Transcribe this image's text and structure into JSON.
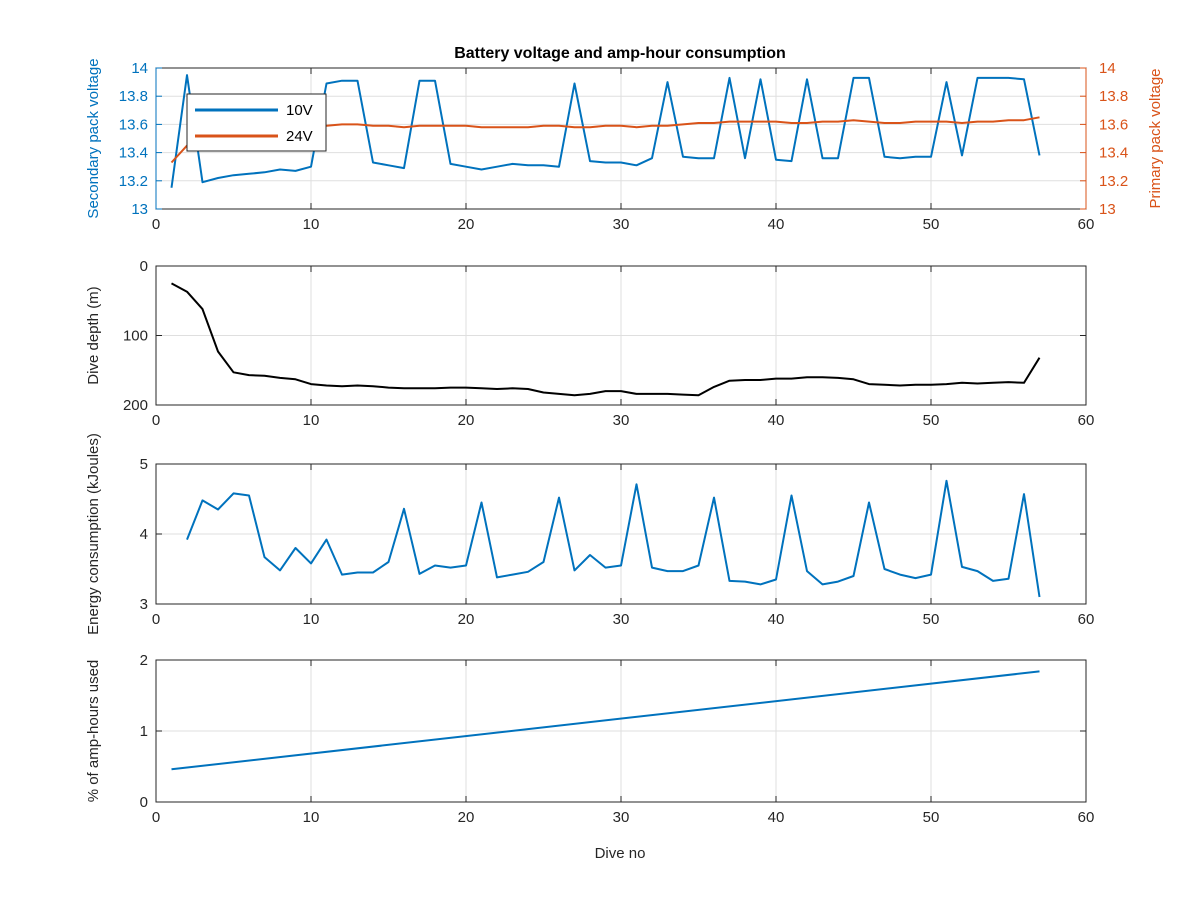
{
  "figure": {
    "title": "Battery voltage and amp-hour consumption",
    "xlabel": "Dive no",
    "colors": {
      "blue": "#0072BD",
      "orange": "#D95319",
      "black": "#000000",
      "axis": "#262626",
      "grid": "#dfdfdf"
    }
  },
  "chart_data": [
    {
      "type": "line",
      "title": "Battery voltage and amp-hour consumption",
      "xlabel": "",
      "ylabel_left": "Secondary pack voltage",
      "ylabel_right": "Primary pack voltage",
      "xlim": [
        0,
        60
      ],
      "xticks": [
        0,
        10,
        20,
        30,
        40,
        50,
        60
      ],
      "ylim": [
        13,
        14
      ],
      "yticks": [
        13,
        13.2,
        13.4,
        13.6,
        13.8,
        14
      ],
      "ylim_right": [
        13,
        14
      ],
      "yticks_right": [
        13,
        13.2,
        13.4,
        13.6,
        13.8,
        14
      ],
      "grid": true,
      "legend": {
        "position": "top-left",
        "entries": [
          "10V",
          "24V"
        ]
      },
      "series": [
        {
          "name": "10V",
          "axis": "left",
          "color": "#0072BD",
          "x": [
            1,
            2,
            3,
            4,
            5,
            6,
            7,
            8,
            9,
            10,
            11,
            12,
            13,
            14,
            15,
            16,
            17,
            18,
            19,
            20,
            21,
            22,
            23,
            24,
            25,
            26,
            27,
            28,
            29,
            30,
            31,
            32,
            33,
            34,
            35,
            36,
            37,
            38,
            39,
            40,
            41,
            42,
            43,
            44,
            45,
            46,
            47,
            48,
            49,
            50,
            51,
            52,
            53,
            54,
            55,
            56,
            57
          ],
          "values": [
            13.15,
            13.95,
            13.19,
            13.22,
            13.24,
            13.25,
            13.26,
            13.28,
            13.27,
            13.3,
            13.89,
            13.91,
            13.91,
            13.33,
            13.31,
            13.29,
            13.91,
            13.91,
            13.32,
            13.3,
            13.28,
            13.3,
            13.32,
            13.31,
            13.31,
            13.3,
            13.89,
            13.34,
            13.33,
            13.33,
            13.31,
            13.36,
            13.9,
            13.37,
            13.36,
            13.36,
            13.93,
            13.36,
            13.92,
            13.35,
            13.34,
            13.92,
            13.36,
            13.36,
            13.93,
            13.93,
            13.37,
            13.36,
            13.37,
            13.37,
            13.9,
            13.38,
            13.93,
            13.93,
            13.93,
            13.92,
            13.38
          ]
        },
        {
          "name": "24V",
          "axis": "right",
          "color": "#D95319",
          "x": [
            1,
            2,
            3,
            4,
            5,
            6,
            7,
            8,
            9,
            10,
            11,
            12,
            13,
            14,
            15,
            16,
            17,
            18,
            19,
            20,
            21,
            22,
            23,
            24,
            25,
            26,
            27,
            28,
            29,
            30,
            31,
            32,
            33,
            34,
            35,
            36,
            37,
            38,
            39,
            40,
            41,
            42,
            43,
            44,
            45,
            46,
            47,
            48,
            49,
            50,
            51,
            52,
            53,
            54,
            55,
            56,
            57
          ],
          "values": [
            13.33,
            13.45,
            13.52,
            13.54,
            13.55,
            13.56,
            13.57,
            13.57,
            13.58,
            13.58,
            13.59,
            13.6,
            13.6,
            13.59,
            13.59,
            13.58,
            13.59,
            13.59,
            13.59,
            13.59,
            13.58,
            13.58,
            13.58,
            13.58,
            13.59,
            13.59,
            13.58,
            13.58,
            13.59,
            13.59,
            13.58,
            13.59,
            13.59,
            13.6,
            13.61,
            13.61,
            13.62,
            13.62,
            13.62,
            13.62,
            13.61,
            13.61,
            13.62,
            13.62,
            13.63,
            13.62,
            13.61,
            13.61,
            13.62,
            13.62,
            13.62,
            13.61,
            13.62,
            13.62,
            13.63,
            13.63,
            13.65
          ]
        }
      ]
    },
    {
      "type": "line",
      "ylabel": "Dive depth (m)",
      "xlim": [
        0,
        60
      ],
      "xticks": [
        0,
        10,
        20,
        30,
        40,
        50,
        60
      ],
      "ylim": [
        0,
        200
      ],
      "yticks": [
        0,
        100,
        200
      ],
      "yreversed": true,
      "grid": true,
      "series": [
        {
          "color": "#000000",
          "x": [
            1,
            2,
            3,
            4,
            5,
            6,
            7,
            8,
            9,
            10,
            11,
            12,
            13,
            14,
            15,
            16,
            17,
            18,
            19,
            20,
            21,
            22,
            23,
            24,
            25,
            26,
            27,
            28,
            29,
            30,
            31,
            32,
            33,
            34,
            35,
            36,
            37,
            38,
            39,
            40,
            41,
            42,
            43,
            44,
            45,
            46,
            47,
            48,
            49,
            50,
            51,
            52,
            53,
            54,
            55,
            56,
            57
          ],
          "values": [
            25,
            37,
            62,
            123,
            153,
            157,
            158,
            161,
            163,
            170,
            172,
            173,
            172,
            173,
            175,
            176,
            176,
            176,
            175,
            175,
            176,
            177,
            176,
            177,
            182,
            184,
            186,
            184,
            180,
            180,
            184,
            184,
            184,
            185,
            186,
            174,
            165,
            164,
            164,
            162,
            162,
            160,
            160,
            161,
            163,
            170,
            171,
            172,
            171,
            171,
            170,
            168,
            169,
            168,
            167,
            168,
            132
          ]
        }
      ]
    },
    {
      "type": "line",
      "ylabel": "Energy consumption (kJoules)",
      "xlim": [
        0,
        60
      ],
      "xticks": [
        0,
        10,
        20,
        30,
        40,
        50,
        60
      ],
      "ylim": [
        3,
        5
      ],
      "yticks": [
        3,
        4,
        5
      ],
      "grid": true,
      "series": [
        {
          "color": "#0072BD",
          "x": [
            2,
            3,
            4,
            5,
            6,
            7,
            8,
            9,
            10,
            11,
            12,
            13,
            14,
            15,
            16,
            17,
            18,
            19,
            20,
            21,
            22,
            23,
            24,
            25,
            26,
            27,
            28,
            29,
            30,
            31,
            32,
            33,
            34,
            35,
            36,
            37,
            38,
            39,
            40,
            41,
            42,
            43,
            44,
            45,
            46,
            47,
            48,
            49,
            50,
            51,
            52,
            53,
            54,
            55,
            56,
            57
          ],
          "values": [
            3.92,
            4.48,
            4.35,
            4.58,
            4.55,
            3.67,
            3.48,
            3.8,
            3.58,
            3.92,
            3.42,
            3.45,
            3.45,
            3.6,
            4.36,
            3.43,
            3.55,
            3.52,
            3.55,
            4.45,
            3.38,
            3.42,
            3.46,
            3.6,
            4.52,
            3.48,
            3.7,
            3.52,
            3.55,
            4.71,
            3.52,
            3.47,
            3.47,
            3.55,
            4.52,
            3.33,
            3.32,
            3.28,
            3.35,
            4.55,
            3.47,
            3.28,
            3.32,
            3.4,
            4.45,
            3.5,
            3.42,
            3.37,
            3.42,
            4.76,
            3.53,
            3.47,
            3.33,
            3.36,
            4.57,
            3.1
          ]
        }
      ]
    },
    {
      "type": "line",
      "ylabel": "% of amp-hours used",
      "xlabel": "Dive no",
      "xlim": [
        0,
        60
      ],
      "xticks": [
        0,
        10,
        20,
        30,
        40,
        50,
        60
      ],
      "ylim": [
        0,
        2
      ],
      "yticks": [
        0,
        1,
        2
      ],
      "grid": true,
      "series": [
        {
          "color": "#0072BD",
          "x": [
            1,
            57
          ],
          "values": [
            0.46,
            1.84
          ]
        }
      ]
    }
  ]
}
